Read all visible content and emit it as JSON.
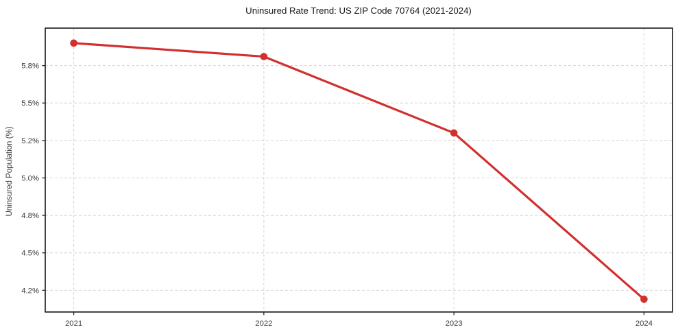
{
  "chart_data": {
    "type": "line",
    "title": "Uninsured Rate Trend: US ZIP Code 70764 (2021-2024)",
    "xlabel": "",
    "ylabel": "Uninsured Population (%)",
    "x": [
      2021,
      2022,
      2023,
      2024
    ],
    "values": [
      5.9,
      5.81,
      5.3,
      4.19
    ],
    "xtick_labels": [
      "2021",
      "2022",
      "2023",
      "2024"
    ],
    "ytick_values": [
      5.75,
      5.5,
      5.25,
      5.0,
      4.75,
      4.5,
      4.25
    ],
    "ytick_labels": [
      "5.8%",
      "5.5%",
      "5.2%",
      "5.0%",
      "4.8%",
      "4.5%",
      "4.2%"
    ],
    "ylim": [
      4.105,
      6.0
    ],
    "xlim": [
      2020.85,
      2024.15
    ],
    "grid": true,
    "legend": false,
    "marker": "circle"
  },
  "style": {
    "line_color": "#d22f2f",
    "grid_color": "#d4d4d4",
    "axis_color": "#242424",
    "tick_label_color": "#3a3a3a",
    "title_color": "#161616",
    "background": "#ffffff"
  }
}
